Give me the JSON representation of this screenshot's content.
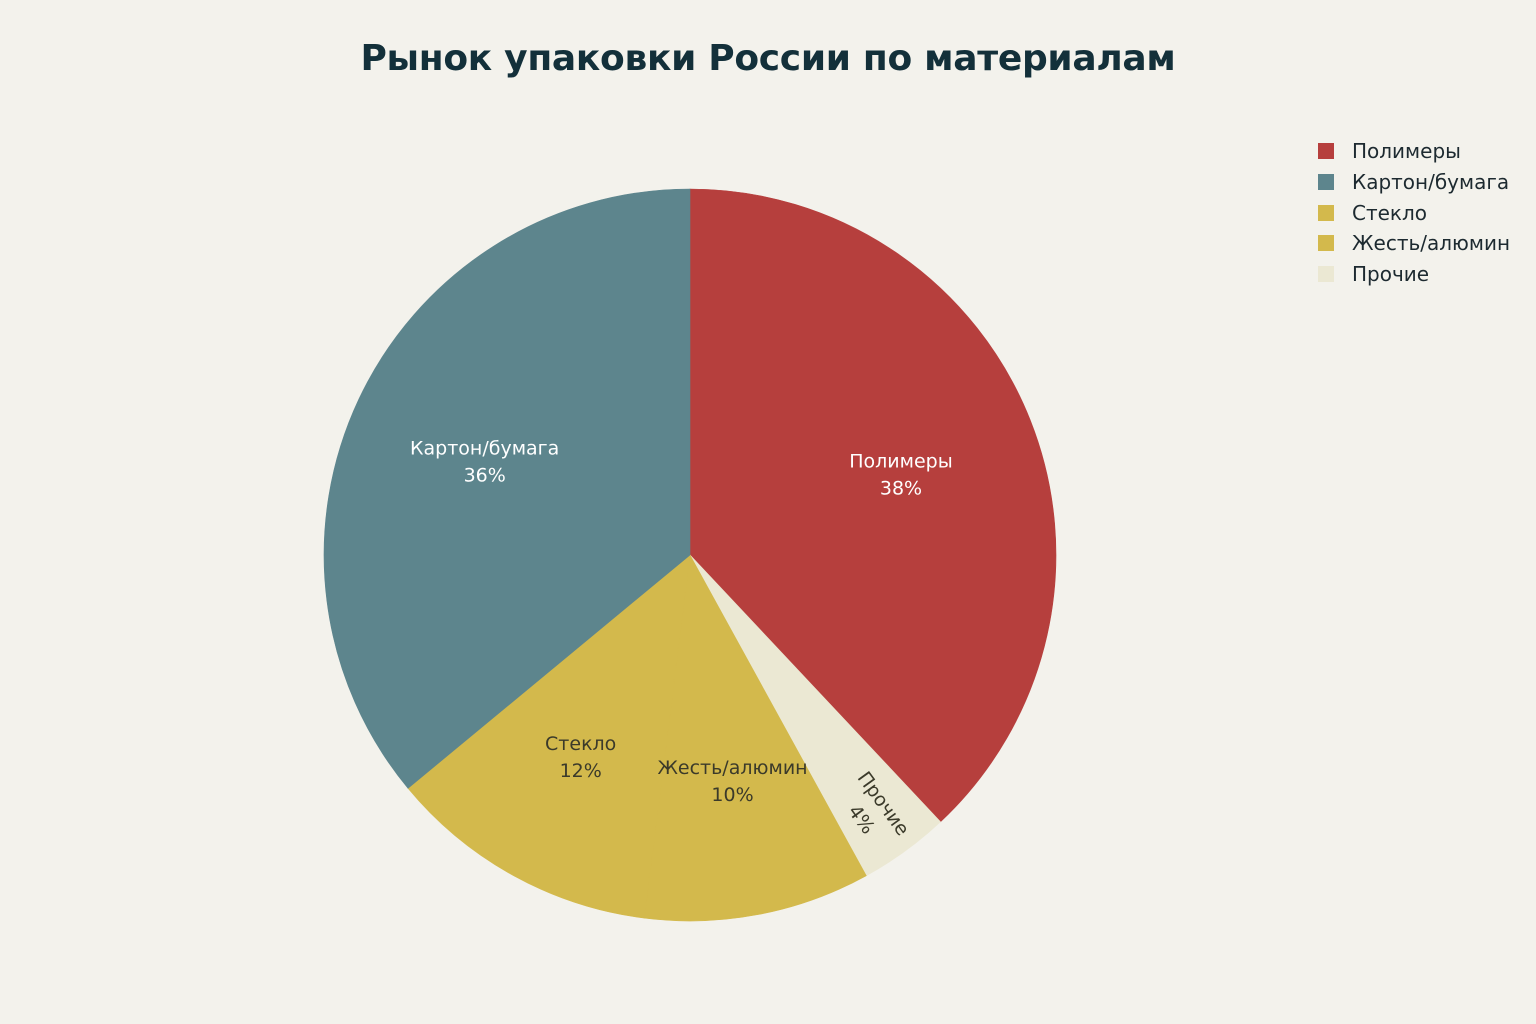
{
  "chart_data": {
    "type": "pie",
    "title": "Рынок упаковки России по материалам",
    "legend_position": "top-right",
    "slices": [
      {
        "name": "Полимеры",
        "value": 38,
        "label": "38%",
        "color": "#b63f3d",
        "text_color": "#ffffff"
      },
      {
        "name": "Картон/бумага",
        "value": 36,
        "label": "36%",
        "color": "#5d858d",
        "text_color": "#ffffff"
      },
      {
        "name": "Стекло",
        "value": 12,
        "label": "12%",
        "color": "#d3b94c",
        "text_color": "#3b3a2a"
      },
      {
        "name": "Жесть/алюмин",
        "value": 10,
        "label": "10%",
        "color": "#d3b94c",
        "text_color": "#3b3a2a"
      },
      {
        "name": "Прочие",
        "value": 4,
        "label": "4%",
        "color": "#ebe8d3",
        "text_color": "#3b3a2a"
      }
    ],
    "pie_draw_order": [
      "Полимеры",
      "Прочие",
      "Жесть/алюмин",
      "Стекло",
      "Картон/бумага"
    ]
  }
}
